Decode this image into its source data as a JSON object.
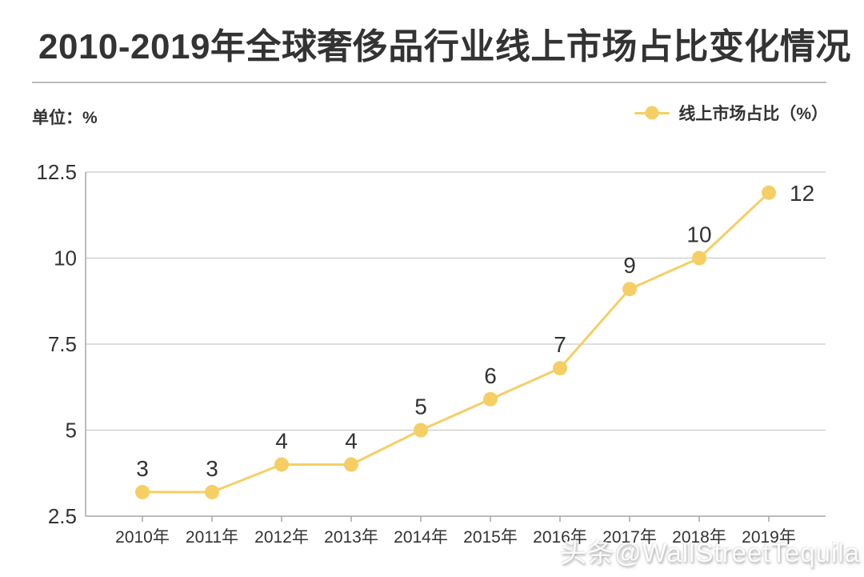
{
  "page": {
    "title": "2010-2019年全球奢侈品行业线上市场占比变化情况",
    "unit_label": "单位：%",
    "watermark": "头条@WallStreetTequila"
  },
  "legend": {
    "label": "线上市场占比（%）"
  },
  "colors": {
    "series": "#F5CF65",
    "text": "#333333",
    "grid": "#CBCBCB",
    "axis": "#A6A6A6",
    "divider": "#BBBBBB"
  },
  "chart_data": {
    "type": "line",
    "title": "2010-2019年全球奢侈品行业线上市场占比变化情况",
    "series_name": "线上市场占比（%）",
    "unit": "%",
    "categories": [
      "2010年",
      "2011年",
      "2012年",
      "2013年",
      "2014年",
      "2015年",
      "2016年",
      "2017年",
      "2018年",
      "2019年"
    ],
    "values": [
      3.2,
      3.2,
      4,
      4,
      5,
      5.9,
      6.8,
      9.1,
      10,
      11.9
    ],
    "point_labels": [
      "3",
      "3",
      "4",
      "4",
      "5",
      "6",
      "7",
      "9",
      "10",
      "12"
    ],
    "xlabel": "",
    "ylabel": "单位：%",
    "ylim": [
      2.5,
      12.5
    ],
    "yticks": [
      2.5,
      5,
      7.5,
      10,
      12.5
    ],
    "grid": true,
    "legend_position": "top-right",
    "marker": "circle"
  }
}
